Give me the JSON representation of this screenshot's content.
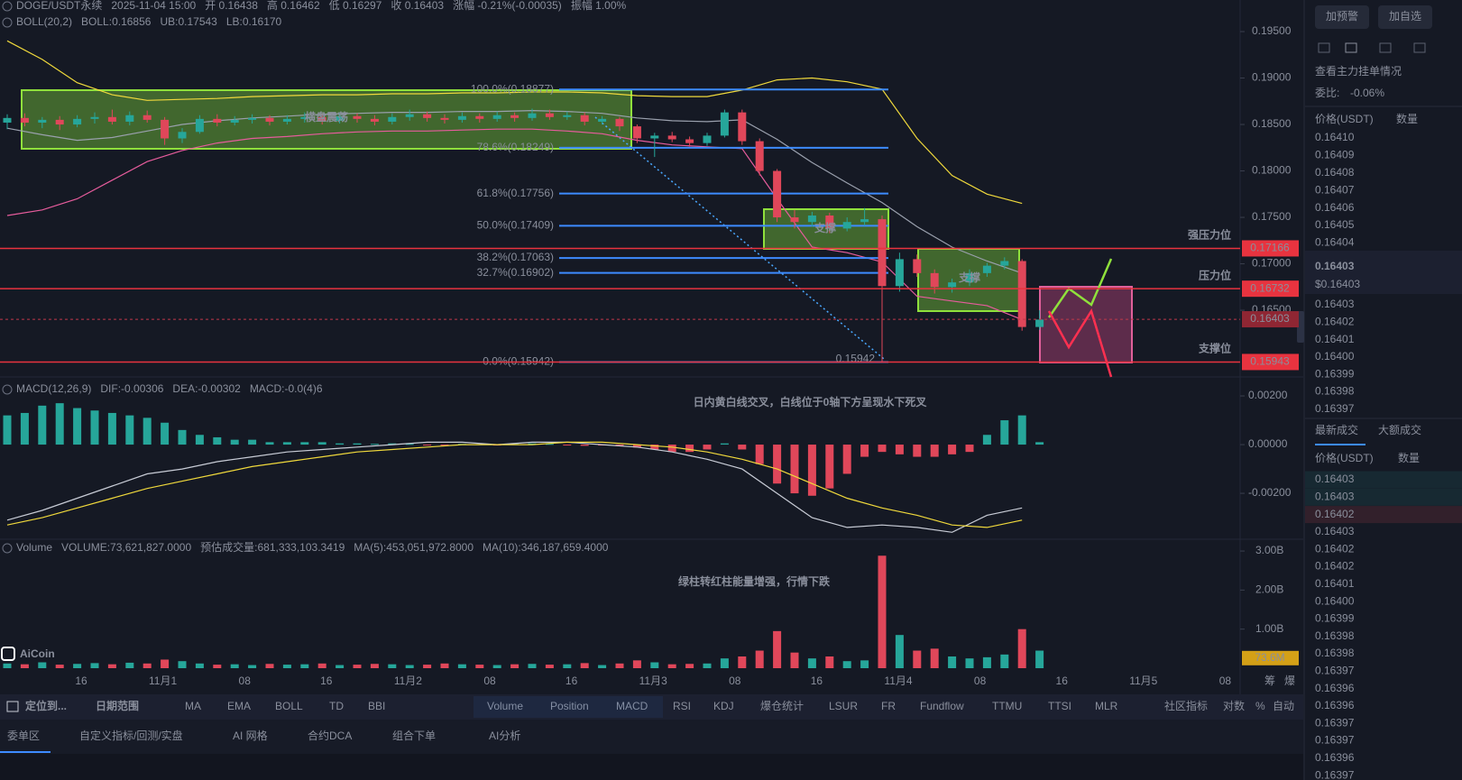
{
  "header": {
    "symbol_line": [
      {
        "text": "DOGE/USDT永续",
        "color": "#9aa0ad"
      },
      {
        "text": "2025-11-04 15:00",
        "color": "#9aa0ad"
      },
      {
        "text": "开 0.16438",
        "color": "#9aa0ad"
      },
      {
        "text": "高 0.16462",
        "color": "#9aa0ad"
      },
      {
        "text": "低 0.16297",
        "color": "#9aa0ad"
      },
      {
        "text": "收 0.16403",
        "color": "#9aa0ad"
      },
      {
        "text": "涨幅 -0.21%(-0.00035)",
        "color": "#e0475a"
      },
      {
        "text": "振幅 1.00%",
        "color": "#e0475a"
      }
    ],
    "boll_line": [
      {
        "text": "BOLL(20,2)",
        "color": "#9aa0ad"
      },
      {
        "text": "BOLL:0.16856",
        "color": "#9aa0ad"
      },
      {
        "text": "UB:0.17543",
        "color": "#f0d93c"
      },
      {
        "text": "LB:0.16170",
        "color": "#e65c9c"
      }
    ],
    "macd_line": [
      {
        "text": "MACD(12,26,9)",
        "color": "#9aa0ad"
      },
      {
        "text": "DIF:-0.00306",
        "color": "#9aa0ad"
      },
      {
        "text": "DEA:-0.00302",
        "color": "#f0d93c"
      },
      {
        "text": "MACD:-0.0(4)6",
        "color": "#e0475a"
      }
    ],
    "volume_line": [
      {
        "text": "Volume",
        "color": "#9aa0ad"
      },
      {
        "text": "VOLUME:73,621,827.0000",
        "color": "#9aa0ad"
      },
      {
        "text": "预估成交量:681,333,103.3419",
        "color": "#6b7080"
      },
      {
        "text": "MA(5):453,051,972.8000",
        "color": "#9aa0ad"
      },
      {
        "text": "MA(10):346,187,659.4000",
        "color": "#f0d93c"
      }
    ]
  },
  "chart": {
    "type": "candlestick",
    "colors": {
      "up": "#26a69a",
      "down": "#e0475a"
    },
    "ylim": [
      0.1586,
      0.1984
    ],
    "yticks": [
      {
        "value": 0.195,
        "label": "0.19500"
      },
      {
        "value": 0.19,
        "label": "0.19000"
      },
      {
        "value": 0.185,
        "label": "0.18500"
      },
      {
        "value": 0.18,
        "label": "0.18000"
      },
      {
        "value": 0.175,
        "label": "0.17500"
      },
      {
        "value": 0.17,
        "label": "0.17000"
      },
      {
        "value": 0.165,
        "label": "0.16500"
      }
    ],
    "candles": [
      [
        0.1852,
        0.1861,
        0.1845,
        0.1857
      ],
      [
        0.1857,
        0.1862,
        0.1848,
        0.1852
      ],
      [
        0.1852,
        0.1858,
        0.1846,
        0.1855
      ],
      [
        0.1855,
        0.1859,
        0.1844,
        0.185
      ],
      [
        0.185,
        0.186,
        0.1847,
        0.1856
      ],
      [
        0.1856,
        0.1863,
        0.1851,
        0.1858
      ],
      [
        0.1858,
        0.1866,
        0.185,
        0.1853
      ],
      [
        0.1853,
        0.1864,
        0.1849,
        0.186
      ],
      [
        0.186,
        0.1865,
        0.1852,
        0.1855
      ],
      [
        0.1855,
        0.1858,
        0.1828,
        0.1835
      ],
      [
        0.1835,
        0.1846,
        0.183,
        0.1842
      ],
      [
        0.1842,
        0.186,
        0.184,
        0.1856
      ],
      [
        0.1856,
        0.1861,
        0.1848,
        0.1852
      ],
      [
        0.1852,
        0.1859,
        0.1849,
        0.1855
      ],
      [
        0.1855,
        0.1861,
        0.1851,
        0.1857
      ],
      [
        0.1857,
        0.186,
        0.1849,
        0.1853
      ],
      [
        0.1853,
        0.186,
        0.185,
        0.1856
      ],
      [
        0.1856,
        0.1863,
        0.1852,
        0.1858
      ],
      [
        0.1858,
        0.1861,
        0.185,
        0.1854
      ],
      [
        0.1854,
        0.1863,
        0.1851,
        0.1859
      ],
      [
        0.1859,
        0.1862,
        0.1852,
        0.1856
      ],
      [
        0.1856,
        0.186,
        0.1849,
        0.1853
      ],
      [
        0.1853,
        0.1862,
        0.185,
        0.1858
      ],
      [
        0.1858,
        0.1866,
        0.1854,
        0.1861
      ],
      [
        0.1861,
        0.1864,
        0.1853,
        0.1857
      ],
      [
        0.1857,
        0.1861,
        0.1851,
        0.1855
      ],
      [
        0.1855,
        0.1863,
        0.1852,
        0.1859
      ],
      [
        0.1859,
        0.1862,
        0.1852,
        0.1856
      ],
      [
        0.1856,
        0.1864,
        0.1853,
        0.186
      ],
      [
        0.186,
        0.1863,
        0.1853,
        0.1857
      ],
      [
        0.1857,
        0.1867,
        0.1854,
        0.1862
      ],
      [
        0.1862,
        0.1866,
        0.1855,
        0.1858
      ],
      [
        0.1858,
        0.1864,
        0.1855,
        0.186
      ],
      [
        0.186,
        0.1863,
        0.1849,
        0.1853
      ],
      [
        0.1853,
        0.1859,
        0.185,
        0.1856
      ],
      [
        0.1856,
        0.1858,
        0.1843,
        0.1848
      ],
      [
        0.1848,
        0.185,
        0.183,
        0.1835
      ],
      [
        0.1835,
        0.1841,
        0.1815,
        0.1838
      ],
      [
        0.1838,
        0.1842,
        0.1831,
        0.1834
      ],
      [
        0.1834,
        0.1837,
        0.1826,
        0.183
      ],
      [
        0.183,
        0.1841,
        0.1827,
        0.1838
      ],
      [
        0.1838,
        0.1866,
        0.1836,
        0.1863
      ],
      [
        0.1863,
        0.1866,
        0.1828,
        0.1832
      ],
      [
        0.1832,
        0.1835,
        0.1795,
        0.18
      ],
      [
        0.18,
        0.1802,
        0.1745,
        0.175
      ],
      [
        0.175,
        0.1758,
        0.1738,
        0.1745
      ],
      [
        0.1745,
        0.1756,
        0.174,
        0.1752
      ],
      [
        0.1752,
        0.1755,
        0.1733,
        0.1738
      ],
      [
        0.1738,
        0.175,
        0.1735,
        0.1745
      ],
      [
        0.1745,
        0.176,
        0.1741,
        0.1748
      ],
      [
        0.1748,
        0.1752,
        0.15942,
        0.1676
      ],
      [
        0.1676,
        0.1712,
        0.167,
        0.1705
      ],
      [
        0.1705,
        0.171,
        0.1686,
        0.169
      ],
      [
        0.169,
        0.1694,
        0.1668,
        0.1675
      ],
      [
        0.1675,
        0.1684,
        0.1669,
        0.168
      ],
      [
        0.168,
        0.1694,
        0.1676,
        0.169
      ],
      [
        0.169,
        0.1701,
        0.1686,
        0.1698
      ],
      [
        0.1698,
        0.1707,
        0.1694,
        0.1703
      ],
      [
        0.1703,
        0.1705,
        0.1628,
        0.1632
      ],
      [
        0.1632,
        0.165,
        0.1629,
        0.164
      ]
    ],
    "boll": {
      "colors": {
        "upper": "#f0d93c",
        "middle": "#9aa0ad",
        "lower": "#e65c9c"
      },
      "upper": [
        0.194,
        0.192,
        0.1895,
        0.1882,
        0.1876,
        0.1877,
        0.1878,
        0.188,
        0.1881,
        0.1882,
        0.1882,
        0.1883,
        0.1883,
        0.1884,
        0.1884,
        0.1885,
        0.1885,
        0.1884,
        0.1881,
        0.188,
        0.188,
        0.1887,
        0.1898,
        0.19,
        0.1896,
        0.1888,
        0.1835,
        0.1795,
        0.1775,
        0.1765
      ],
      "middle": [
        0.1846,
        0.1839,
        0.1833,
        0.1836,
        0.1843,
        0.185,
        0.1854,
        0.1857,
        0.1859,
        0.1861,
        0.1862,
        0.1863,
        0.1863,
        0.1864,
        0.1864,
        0.1865,
        0.1864,
        0.1862,
        0.1857,
        0.1854,
        0.1853,
        0.1855,
        0.1834,
        0.1809,
        0.1787,
        0.1766,
        0.174,
        0.1718,
        0.1703,
        0.169
      ],
      "lower": [
        0.1752,
        0.1758,
        0.177,
        0.179,
        0.181,
        0.1822,
        0.183,
        0.1835,
        0.1837,
        0.184,
        0.1842,
        0.1843,
        0.1843,
        0.1844,
        0.1845,
        0.1845,
        0.1843,
        0.184,
        0.1833,
        0.1828,
        0.1826,
        0.1824,
        0.177,
        0.1718,
        0.1712,
        0.1702,
        0.1665,
        0.166,
        0.1655,
        0.164
      ]
    },
    "fib_color": "#3d8bff",
    "fib": [
      {
        "label": "100.0%(0.18877)",
        "value": 0.18877
      },
      {
        "label": "78.6%(0.18249)",
        "value": 0.18249
      },
      {
        "label": "61.8%(0.17756)",
        "value": 0.17756
      },
      {
        "label": "50.0%(0.17409)",
        "value": 0.17409
      },
      {
        "label": "38.2%(0.17063)",
        "value": 0.17063
      },
      {
        "label": "32.7%(0.16902)",
        "value": 0.16902
      },
      {
        "label": "0.0%(0.15942)",
        "value": 0.15942
      }
    ],
    "low_point": 0.15942,
    "level_color": "#e8333f",
    "levels": [
      {
        "name": "强压力位",
        "value": 0.17166
      },
      {
        "name": "压力位",
        "value": 0.16732
      },
      {
        "name": "支撑位",
        "value": 0.15943
      }
    ],
    "current_price": 0.16403,
    "boxes": [
      "横盘震荡",
      "支撑",
      "支撑"
    ],
    "x_labels": [
      "16",
      "11月1",
      "08",
      "16",
      "11月2",
      "08",
      "16",
      "11月3",
      "08",
      "16",
      "11月4",
      "08",
      "16",
      "11月5",
      "08"
    ],
    "axis_icons": [
      "筹",
      "爆"
    ]
  },
  "macd": {
    "ylim": [
      -0.00396,
      0.00252
    ],
    "yticks": [
      {
        "value": 0.002,
        "label": "0.00200"
      },
      {
        "value": 0,
        "label": "0.00000"
      },
      {
        "value": -0.002,
        "label": "-0.00200"
      }
    ],
    "histogram": [
      0.0012,
      0.0013,
      0.0016,
      0.0017,
      0.0015,
      0.0014,
      0.0013,
      0.0012,
      0.0011,
      0.0009,
      0.0006,
      0.0004,
      0.0003,
      0.0002,
      0.0002,
      0.0001,
      0.0001,
      0.0001,
      0.0001,
      5e-05,
      5e-05,
      3e-05,
      5e-05,
      3e-05,
      -3e-05,
      -2e-05,
      3e-05,
      2e-05,
      -2e-05,
      3e-05,
      5e-05,
      3e-05,
      -3e-05,
      -5e-05,
      -3e-05,
      -6e-05,
      -0.00012,
      -0.0002,
      -0.0003,
      -0.0003,
      -0.0002,
      5e-05,
      -0.0002,
      -0.0008,
      -0.0016,
      -0.002,
      -0.0021,
      -0.0018,
      -0.0012,
      -0.0005,
      -0.0003,
      -0.0004,
      -0.0005,
      -0.0005,
      -0.0004,
      -0.0003,
      0.0004,
      0.001,
      0.0012,
      0.0001
    ],
    "dif": [
      -0.0031,
      -0.0027,
      -0.0022,
      -0.0017,
      -0.0012,
      -0.001,
      -0.0007,
      -0.0005,
      -0.0003,
      -0.0002,
      -0.0001,
      0,
      0.0001,
      0.0001,
      0,
      0.0001,
      0.0001,
      0,
      -0.0001,
      -0.0003,
      -0.0006,
      -0.001,
      -0.002,
      -0.003,
      -0.0034,
      -0.0033,
      -0.0034,
      -0.0036,
      -0.0029,
      -0.0026
    ],
    "dea": [
      -0.0033,
      -0.003,
      -0.0026,
      -0.0022,
      -0.0018,
      -0.0015,
      -0.0012,
      -0.0009,
      -0.0007,
      -0.0005,
      -0.0003,
      -0.0002,
      -0.0001,
      0,
      0,
      0,
      0.0001,
      0.0001,
      0,
      -0.0001,
      -0.0003,
      -0.0006,
      -0.001,
      -0.0016,
      -0.0022,
      -0.0026,
      -0.0029,
      -0.0033,
      -0.0034,
      -0.0031
    ],
    "line_colors": {
      "dif": "#c8ccd6",
      "dea": "#f0d93c"
    },
    "annotation": {
      "text": "日内黄白线交叉，白线位于0轴下方呈现水下死叉",
      "color": "#3ccf3c"
    }
  },
  "volume": {
    "ylim": [
      0,
      3.14
    ],
    "yticks": [
      {
        "value": 3,
        "label": "3.00B"
      },
      {
        "value": 2,
        "label": "2.00B"
      },
      {
        "value": 1,
        "label": "1.00B"
      }
    ],
    "values": [
      0.12,
      0.1,
      0.15,
      0.09,
      0.11,
      0.13,
      0.1,
      0.14,
      0.12,
      0.22,
      0.18,
      0.12,
      0.09,
      0.1,
      0.08,
      0.11,
      0.09,
      0.1,
      0.12,
      0.08,
      0.09,
      0.11,
      0.1,
      0.08,
      0.09,
      0.12,
      0.1,
      0.09,
      0.08,
      0.1,
      0.11,
      0.09,
      0.1,
      0.13,
      0.08,
      0.12,
      0.2,
      0.15,
      0.1,
      0.11,
      0.12,
      0.25,
      0.3,
      0.45,
      0.95,
      0.4,
      0.25,
      0.3,
      0.18,
      0.2,
      2.88,
      0.85,
      0.45,
      0.5,
      0.3,
      0.25,
      0.28,
      0.35,
      1.0,
      0.45
    ],
    "last": {
      "value": 0.0736,
      "label": "73.6M"
    },
    "annotation": {
      "text": "绿柱转红柱能量增强，行情下跌",
      "color": "#ff3b3b"
    },
    "logo": "AiCoin"
  },
  "toolbar": [
    {
      "text": "定位到...",
      "active": false
    },
    {
      "text": "日期范围",
      "active": false
    },
    {
      "text": "MA",
      "active": false
    },
    {
      "text": "EMA",
      "active": false
    },
    {
      "text": "BOLL",
      "active": true
    },
    {
      "text": "TD",
      "active": false
    },
    {
      "text": "BBI",
      "active": false
    },
    {
      "text": "Volume",
      "active": true
    },
    {
      "text": "Position",
      "active": false
    },
    {
      "text": "MACD",
      "active": true
    },
    {
      "text": "RSI",
      "active": false
    },
    {
      "text": "KDJ",
      "active": false
    },
    {
      "text": "爆仓统计",
      "active": false
    },
    {
      "text": "LSUR",
      "active": false
    },
    {
      "text": "FR",
      "active": false
    },
    {
      "text": "Fundflow",
      "active": false
    },
    {
      "text": "TTMU",
      "active": false
    },
    {
      "text": "TTSI",
      "active": false
    },
    {
      "text": "MLR",
      "active": false
    },
    {
      "text": "社区指标",
      "active": false
    },
    {
      "text": "对数",
      "active": false
    },
    {
      "text": "%",
      "active": false
    },
    {
      "text": "自动",
      "active": true
    }
  ],
  "tabs": [
    {
      "text": "委单区",
      "active": true
    },
    {
      "text": "自定义指标/回测/实盘",
      "active": false
    },
    {
      "text": "AI 网格",
      "active": false
    },
    {
      "text": "合约DCA",
      "active": false
    },
    {
      "text": "组合下单",
      "active": false
    },
    {
      "text": "AI分析",
      "active": false
    }
  ],
  "side_panel": {
    "buttons": [
      "加预警",
      "加自选"
    ],
    "depth_title": "查看主力挂单情况",
    "ratio_label": "委比:",
    "ratio_value": "-0.06%",
    "book_headers": [
      "价格(USDT)",
      "数量"
    ],
    "asks": [
      "0.16410",
      "0.16409",
      "0.16408",
      "0.16407",
      "0.16406",
      "0.16405",
      "0.16404"
    ],
    "last_price": "0.16403",
    "last_price_usd": "$0.16403",
    "bids": [
      "0.16403",
      "0.16402",
      "0.16401",
      "0.16400",
      "0.16399",
      "0.16398",
      "0.16397"
    ],
    "trade_tabs": [
      "最新成交",
      "大额成交"
    ],
    "trade_headers": [
      "价格(USDT)",
      "数量"
    ],
    "trades": [
      {
        "price": "0.16403",
        "side": "buy"
      },
      {
        "price": "0.16403",
        "side": "buy"
      },
      {
        "price": "0.16402",
        "side": "sell"
      },
      {
        "price": "0.16403",
        "side": "buy"
      },
      {
        "price": "0.16402",
        "side": "sell"
      },
      {
        "price": "0.16402",
        "side": "buy"
      },
      {
        "price": "0.16401",
        "side": "buy"
      },
      {
        "price": "0.16400",
        "side": "buy"
      },
      {
        "price": "0.16399",
        "side": "buy"
      },
      {
        "price": "0.16398",
        "side": "sell"
      },
      {
        "price": "0.16398",
        "side": "buy"
      },
      {
        "price": "0.16397",
        "side": "buy"
      },
      {
        "price": "0.16396",
        "side": "sell"
      },
      {
        "price": "0.16396",
        "side": "sell"
      },
      {
        "price": "0.16397",
        "side": "buy"
      },
      {
        "price": "0.16397",
        "side": "buy"
      },
      {
        "price": "0.16396",
        "side": "sell"
      },
      {
        "price": "0.16397",
        "side": "sell"
      }
    ]
  }
}
